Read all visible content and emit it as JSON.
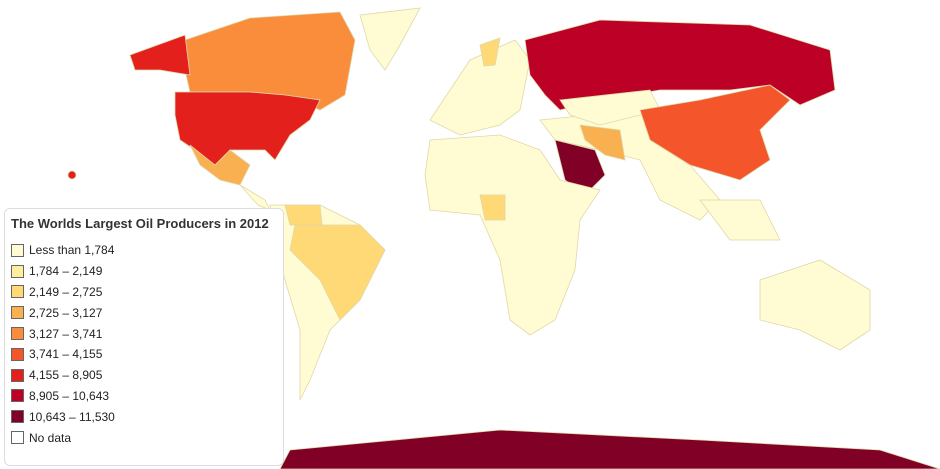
{
  "title": "The Worlds Largest Oil Producers in 2012",
  "legend": [
    {
      "label": "Less than 1,784",
      "color": "#fffbd2"
    },
    {
      "label": "1,784 – 2,149",
      "color": "#ffeda0"
    },
    {
      "label": "2,149 – 2,725",
      "color": "#fed976"
    },
    {
      "label": "2,725 – 3,127",
      "color": "#f9b050"
    },
    {
      "label": "3,127 – 3,741",
      "color": "#f98d3c"
    },
    {
      "label": "3,741 – 4,155",
      "color": "#f4552b"
    },
    {
      "label": "4,155 – 8,905",
      "color": "#e3201c"
    },
    {
      "label": "8,905 – 10,643",
      "color": "#bd0026"
    },
    {
      "label": "10,643 – 11,530",
      "color": "#800026"
    },
    {
      "label": "No data",
      "color": "#ffffff"
    }
  ]
}
